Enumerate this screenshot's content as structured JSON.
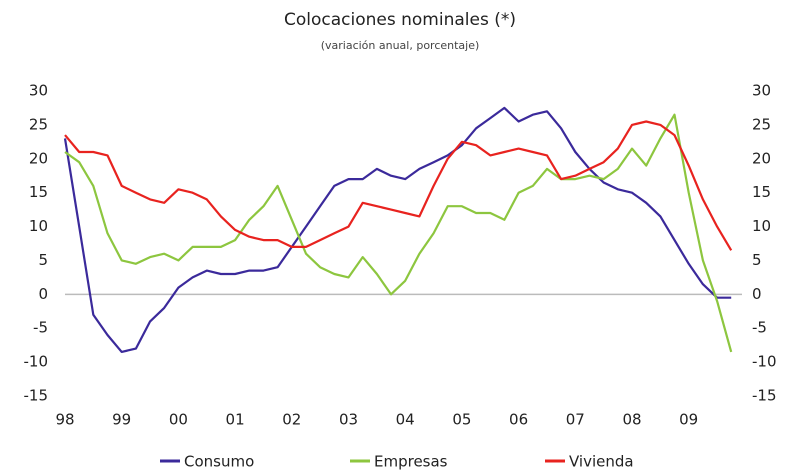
{
  "chart_data": {
    "type": "line",
    "title": "Colocaciones nominales (*)",
    "subtitle": "(variación anual, porcentaje)",
    "categories": [
      "98",
      null,
      null,
      null,
      "99",
      null,
      null,
      null,
      "00",
      null,
      null,
      null,
      "01",
      null,
      null,
      null,
      "02",
      null,
      null,
      null,
      "03",
      null,
      null,
      null,
      "04",
      null,
      null,
      null,
      "05",
      null,
      null,
      null,
      "06",
      null,
      null,
      null,
      "07",
      null,
      null,
      null,
      "08",
      null,
      null,
      null,
      "09",
      null,
      null,
      null
    ],
    "series": [
      {
        "name": "Consumo",
        "color": "#3b2a9b",
        "values": [
          23,
          10,
          -3,
          -6,
          -8.5,
          -8,
          -4,
          -2,
          1,
          2.5,
          3.5,
          3,
          3,
          3.5,
          3.5,
          4,
          7,
          10,
          13,
          16,
          17,
          17,
          18.5,
          17.5,
          17,
          18.5,
          19.5,
          20.5,
          22,
          24.5,
          26,
          27.5,
          25.5,
          26.5,
          27,
          24.5,
          21,
          18.5,
          16.5,
          15.5,
          15,
          13.5,
          11.5,
          8,
          4.5,
          1.5,
          -0.5,
          -0.5
        ]
      },
      {
        "name": "Empresas",
        "color": "#8dc63f",
        "values": [
          21,
          19.5,
          16,
          9,
          5,
          4.5,
          5.5,
          6,
          5,
          7,
          7,
          7,
          8,
          11,
          13,
          16,
          11,
          6,
          4,
          3,
          2.5,
          5.5,
          3,
          0,
          2,
          6,
          9,
          13,
          13,
          12,
          12,
          11,
          15,
          16,
          18.5,
          17,
          17,
          17.5,
          17,
          18.5,
          21.5,
          19,
          23,
          26.5,
          15,
          5,
          -1,
          -8.5
        ]
      },
      {
        "name": "Vivienda",
        "color": "#e8231f",
        "values": [
          23.5,
          21,
          21,
          20.5,
          16,
          15,
          14,
          13.5,
          15.5,
          15,
          14,
          11.5,
          9.5,
          8.5,
          8,
          8,
          7,
          7,
          8,
          9,
          10,
          13.5,
          13,
          12.5,
          12,
          11.5,
          16,
          20,
          22.5,
          22,
          20.5,
          21,
          21.5,
          21,
          20.5,
          17,
          17.5,
          18.5,
          19.5,
          21.5,
          25,
          25.5,
          25,
          23.5,
          19,
          14,
          10,
          6.5
        ]
      }
    ],
    "ylim": [
      -15,
      30
    ],
    "yticks": [
      -15,
      -10,
      -5,
      0,
      5,
      10,
      15,
      20,
      25,
      30
    ],
    "y2lim": [
      -15,
      30
    ],
    "y2ticks": [
      -15,
      -10,
      -5,
      0,
      5,
      10,
      15,
      20,
      25,
      30
    ],
    "grid": false,
    "legend": "bottom"
  }
}
